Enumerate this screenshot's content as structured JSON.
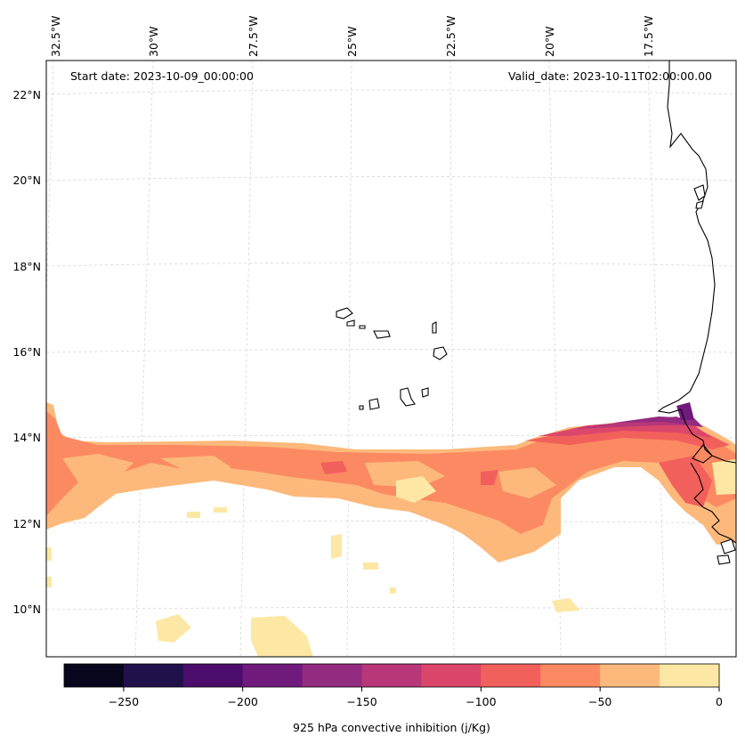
{
  "map": {
    "start_label": "Start date: 2023-10-09_00:00:00",
    "valid_label": "Valid_date: 2023-10-11T02:00:00.00",
    "lon_labels": [
      "32.5°W",
      "30°W",
      "27.5°W",
      "25°W",
      "22.5°W",
      "20°W",
      "17.5°W"
    ],
    "lat_labels": [
      "22°N",
      "20°N",
      "18°N",
      "16°N",
      "14°N",
      "12°N",
      "10°N"
    ]
  },
  "colorbar": {
    "label": "925 hPa convective inhibition (j/Kg)",
    "tick_labels": [
      "−250",
      "−200",
      "−150",
      "−100",
      "−50",
      "0"
    ],
    "colors": [
      "#07061d",
      "#21114b",
      "#4c0c6b",
      "#711a7e",
      "#932b80",
      "#b73779",
      "#db476a",
      "#f2605c",
      "#fb8a62",
      "#fdb97b",
      "#fce8a4"
    ]
  }
}
